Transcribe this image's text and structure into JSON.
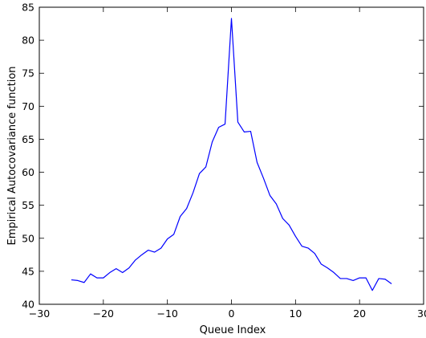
{
  "chart_data": {
    "type": "line",
    "title": "",
    "xlabel": "Queue Index",
    "ylabel": "Empirical Autocovariance function",
    "xlim": [
      -30,
      30
    ],
    "ylim": [
      40,
      85
    ],
    "xticks": [
      -30,
      -20,
      -10,
      0,
      10,
      20,
      30
    ],
    "yticks": [
      40,
      45,
      50,
      55,
      60,
      65,
      70,
      75,
      80,
      85
    ],
    "grid": false,
    "legend": "none",
    "series": [
      {
        "color": "#0000ff",
        "x": [
          -25,
          -24,
          -23,
          -22,
          -21,
          -20,
          -19,
          -18,
          -17,
          -16,
          -15,
          -14,
          -13,
          -12,
          -11,
          -10,
          -9,
          -8,
          -7,
          -6,
          -5,
          -4,
          -3,
          -2,
          -1,
          0,
          1,
          2,
          3,
          4,
          5,
          6,
          7,
          8,
          9,
          10,
          11,
          12,
          13,
          14,
          15,
          16,
          17,
          18,
          19,
          20,
          21,
          22,
          23,
          24,
          25
        ],
        "y": [
          43.7,
          43.6,
          43.3,
          44.6,
          44.0,
          44.0,
          44.8,
          45.4,
          44.8,
          45.5,
          46.7,
          47.5,
          48.2,
          47.9,
          48.5,
          49.9,
          50.6,
          53.3,
          54.5,
          56.9,
          59.8,
          60.8,
          64.6,
          66.8,
          67.3,
          83.3,
          67.6,
          66.1,
          66.2,
          61.5,
          59.1,
          56.5,
          55.2,
          53.0,
          52.0,
          50.3,
          48.8,
          48.5,
          47.7,
          46.1,
          45.5,
          44.8,
          43.9,
          43.9,
          43.6,
          44.0,
          44.0,
          42.1,
          43.9,
          43.8,
          43.1
        ]
      }
    ]
  }
}
